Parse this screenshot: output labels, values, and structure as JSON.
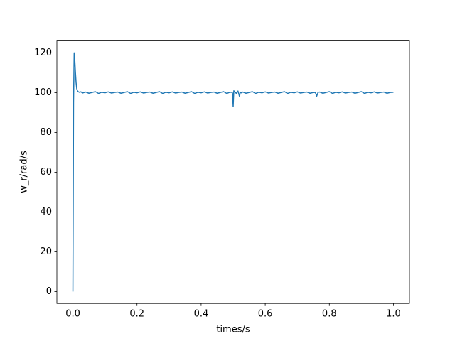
{
  "chart_data": {
    "type": "line",
    "x_label": "times/s",
    "y_label": "w_r/rad/s",
    "x": [
      0,
      0.002,
      0.004,
      0.006,
      0.008,
      0.01,
      0.012,
      0.015,
      0.02,
      0.025,
      0.03,
      0.04,
      0.05,
      0.06,
      0.07,
      0.08,
      0.09,
      0.1,
      0.11,
      0.12,
      0.13,
      0.14,
      0.15,
      0.16,
      0.17,
      0.18,
      0.19,
      0.2,
      0.21,
      0.22,
      0.23,
      0.24,
      0.25,
      0.26,
      0.27,
      0.28,
      0.29,
      0.3,
      0.31,
      0.32,
      0.33,
      0.34,
      0.35,
      0.36,
      0.37,
      0.38,
      0.39,
      0.4,
      0.41,
      0.42,
      0.43,
      0.44,
      0.45,
      0.46,
      0.47,
      0.48,
      0.49,
      0.495,
      0.498,
      0.5,
      0.502,
      0.505,
      0.51,
      0.515,
      0.52,
      0.522,
      0.525,
      0.53,
      0.54,
      0.55,
      0.56,
      0.57,
      0.58,
      0.59,
      0.6,
      0.61,
      0.62,
      0.63,
      0.64,
      0.65,
      0.66,
      0.67,
      0.68,
      0.69,
      0.7,
      0.71,
      0.72,
      0.73,
      0.74,
      0.75,
      0.755,
      0.758,
      0.76,
      0.765,
      0.77,
      0.78,
      0.79,
      0.8,
      0.81,
      0.82,
      0.83,
      0.84,
      0.85,
      0.86,
      0.87,
      0.88,
      0.89,
      0.9,
      0.91,
      0.92,
      0.93,
      0.94,
      0.95,
      0.96,
      0.97,
      0.98,
      0.99,
      1.0
    ],
    "series": [
      {
        "color": "#1f77b4",
        "values": [
          0,
          95,
          120,
          116,
          110,
          105,
          102,
          100.6,
          100.2,
          100.4,
          99.8,
          100.3,
          99.7,
          100.1,
          100.5,
          99.6,
          100.2,
          99.9,
          100.4,
          99.8,
          100.1,
          100.3,
          99.7,
          100.1,
          100.5,
          99.6,
          100.2,
          99.9,
          100.4,
          99.8,
          100.1,
          100.3,
          99.7,
          100.1,
          100.5,
          99.6,
          100.2,
          99.9,
          100.4,
          99.8,
          100.1,
          100.3,
          99.7,
          100.1,
          100.5,
          99.6,
          100.2,
          99.9,
          100.4,
          99.8,
          100.1,
          100.3,
          99.7,
          100.1,
          100.5,
          99.6,
          100.2,
          100.2,
          99.8,
          93,
          100.9,
          100.5,
          99.6,
          100.8,
          98,
          100.3,
          99.9,
          100.3,
          99.7,
          100.1,
          100.5,
          99.6,
          100.2,
          99.9,
          100.4,
          99.8,
          100.1,
          100.3,
          99.7,
          100.1,
          100.5,
          99.6,
          100.2,
          99.9,
          100.4,
          99.8,
          100.1,
          100.3,
          99.7,
          100.1,
          100.1,
          99.6,
          98,
          100.2,
          100.3,
          99.7,
          100.1,
          100.5,
          99.6,
          100.2,
          99.9,
          100.4,
          99.8,
          100.1,
          100.3,
          99.7,
          100.1,
          100.5,
          99.6,
          100.2,
          99.9,
          100.4,
          99.8,
          100.1,
          100.3,
          99.7,
          100.1,
          100.2
        ]
      }
    ],
    "xlim": [
      -0.05,
      1.05
    ],
    "ylim": [
      -6,
      126
    ],
    "xticks": [
      {
        "value": 0,
        "label": "0.0"
      },
      0.2,
      0.4,
      0.6,
      0.8,
      {
        "value": 1,
        "label": "1.0"
      }
    ],
    "yticks": [
      0,
      20,
      40,
      60,
      80,
      100,
      120
    ],
    "grid": false
  }
}
